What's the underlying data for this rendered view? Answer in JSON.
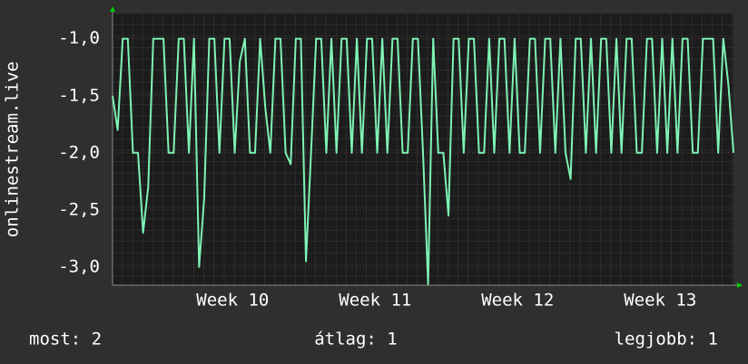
{
  "chart_data": {
    "type": "line",
    "y_label": "onlinestream.live",
    "x": [
      0,
      0.25,
      0.5,
      0.75,
      1,
      1.25,
      1.5,
      1.75,
      2,
      2.25,
      2.5,
      2.75,
      3,
      3.25,
      3.5,
      3.75,
      4,
      4.25,
      4.5,
      4.75,
      5,
      5.25,
      5.5,
      5.75,
      6,
      6.25,
      6.5,
      6.75,
      7,
      7.25,
      7.5,
      7.75,
      8,
      8.25,
      8.5,
      8.75,
      9,
      9.25,
      9.5,
      9.75,
      10,
      10.25,
      10.5,
      10.75,
      11,
      11.25,
      11.5,
      11.75,
      12,
      12.25,
      12.5,
      12.75,
      13,
      13.25,
      13.5,
      13.75,
      14,
      14.25,
      14.5,
      14.75,
      15,
      15.25,
      15.5,
      15.75,
      16,
      16.25,
      16.5,
      16.75,
      17,
      17.25,
      17.5,
      17.75,
      18,
      18.25,
      18.5,
      18.75,
      19,
      19.25,
      19.5,
      19.75,
      20,
      20.25,
      20.5,
      20.75,
      21,
      21.25,
      21.5,
      21.75,
      22,
      22.25,
      22.5,
      22.75,
      23,
      23.25,
      23.5,
      23.75,
      24,
      24.25,
      24.5,
      24.75,
      25,
      25.25,
      25.5,
      25.75,
      26,
      26.25,
      26.5,
      26.75,
      27,
      27.25,
      27.5,
      27.75,
      28,
      28.25,
      28.5,
      28.75,
      29,
      29.25,
      29.5,
      29.75,
      30,
      30.25,
      30.5
    ],
    "series": [
      {
        "color": "#7ef2b4",
        "values": [
          -1.5,
          -1.8,
          -1.0,
          -1.0,
          -2.0,
          -2.0,
          -2.7,
          -2.3,
          -1.0,
          -1.0,
          -1.0,
          -2.0,
          -2.0,
          -1.0,
          -1.0,
          -2.0,
          -1.0,
          -3.0,
          -2.4,
          -1.0,
          -1.0,
          -2.0,
          -1.0,
          -1.0,
          -2.0,
          -1.2,
          -1.0,
          -2.0,
          -2.0,
          -1.0,
          -1.6,
          -2.0,
          -1.0,
          -1.0,
          -2.0,
          -2.1,
          -1.0,
          -1.0,
          -2.95,
          -2.0,
          -1.0,
          -1.0,
          -2.0,
          -1.0,
          -2.0,
          -1.0,
          -1.0,
          -2.0,
          -1.0,
          -2.0,
          -1.0,
          -1.0,
          -2.0,
          -1.0,
          -2.0,
          -1.0,
          -1.0,
          -2.0,
          -2.0,
          -1.0,
          -1.0,
          -2.0,
          -3.15,
          -1.0,
          -2.0,
          -2.0,
          -2.55,
          -1.0,
          -1.0,
          -2.0,
          -1.0,
          -1.0,
          -2.0,
          -2.0,
          -1.0,
          -2.0,
          -1.0,
          -1.0,
          -2.0,
          -1.0,
          -2.0,
          -2.0,
          -1.0,
          -1.0,
          -2.0,
          -1.0,
          -1.0,
          -2.0,
          -1.0,
          -2.0,
          -2.23,
          -1.0,
          -1.0,
          -2.0,
          -1.0,
          -2.0,
          -1.0,
          -1.0,
          -2.0,
          -1.0,
          -2.0,
          -1.0,
          -1.0,
          -2.0,
          -2.0,
          -1.0,
          -1.0,
          -2.0,
          -1.0,
          -2.0,
          -1.0,
          -2.0,
          -1.0,
          -1.0,
          -2.0,
          -2.0,
          -1.0,
          -1.0,
          -1.0,
          -2.0,
          -1.0,
          -1.4,
          -2.0
        ]
      }
    ],
    "xlim": [
      0,
      30.5
    ],
    "xticks": [
      {
        "value": 5.9,
        "label": "Week 10"
      },
      {
        "value": 12.9,
        "label": "Week 11"
      },
      {
        "value": 19.9,
        "label": "Week 12"
      },
      {
        "value": 26.9,
        "label": "Week 13"
      }
    ],
    "ylim": [
      -3.16,
      -0.78
    ],
    "yticks": [
      {
        "value": -1.0,
        "label": "-1,0"
      },
      {
        "value": -1.5,
        "label": "-1,5"
      },
      {
        "value": -2.0,
        "label": "-2,0"
      },
      {
        "value": -2.5,
        "label": "-2,5"
      },
      {
        "value": -3.0,
        "label": "-3,0"
      }
    ],
    "grid": true,
    "legend": [
      "most: 2",
      "átlag: 1",
      "legjobb: 1"
    ]
  }
}
